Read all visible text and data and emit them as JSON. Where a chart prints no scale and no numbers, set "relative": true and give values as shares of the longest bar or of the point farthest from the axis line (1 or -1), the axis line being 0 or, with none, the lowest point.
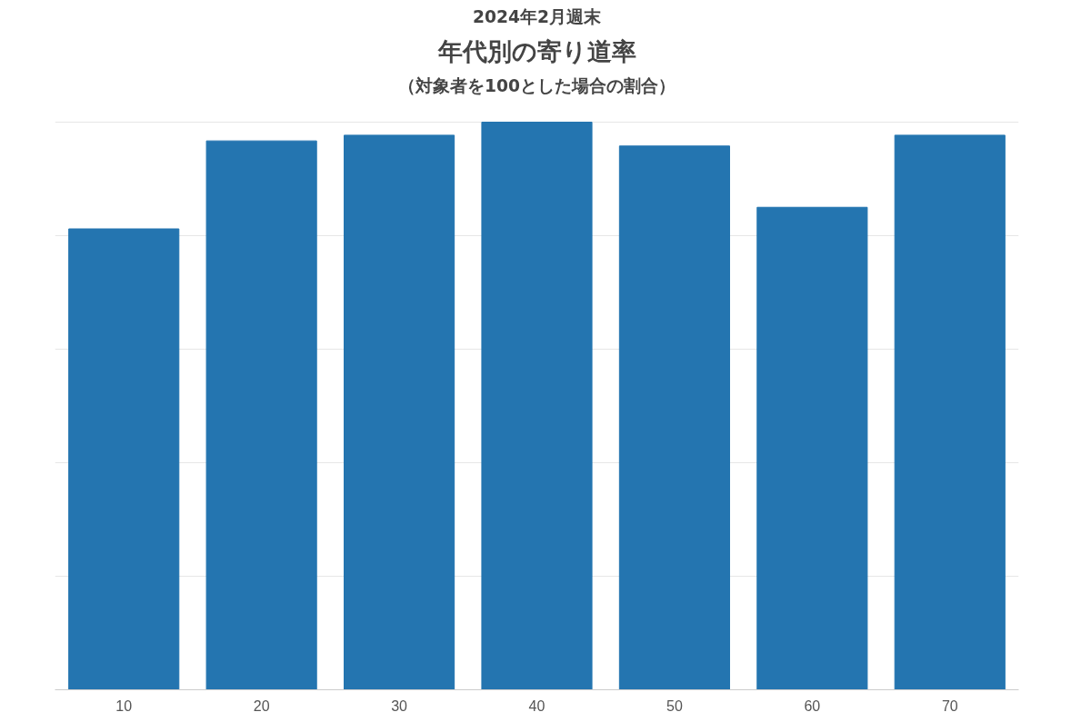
{
  "chart_data": {
    "type": "bar",
    "title": "年代別の寄り道率",
    "subtitle": "（対象者を100とした場合の割合）",
    "annotations": [
      "2024年2月週末"
    ],
    "categories": [
      "10",
      "20",
      "30",
      "40",
      "50",
      "60",
      "70"
    ],
    "values": [
      0.812,
      0.967,
      0.977,
      1,
      0.958,
      0.85,
      0.977
    ],
    "color": "#2475b0",
    "relative": true,
    "grid": "y"
  }
}
